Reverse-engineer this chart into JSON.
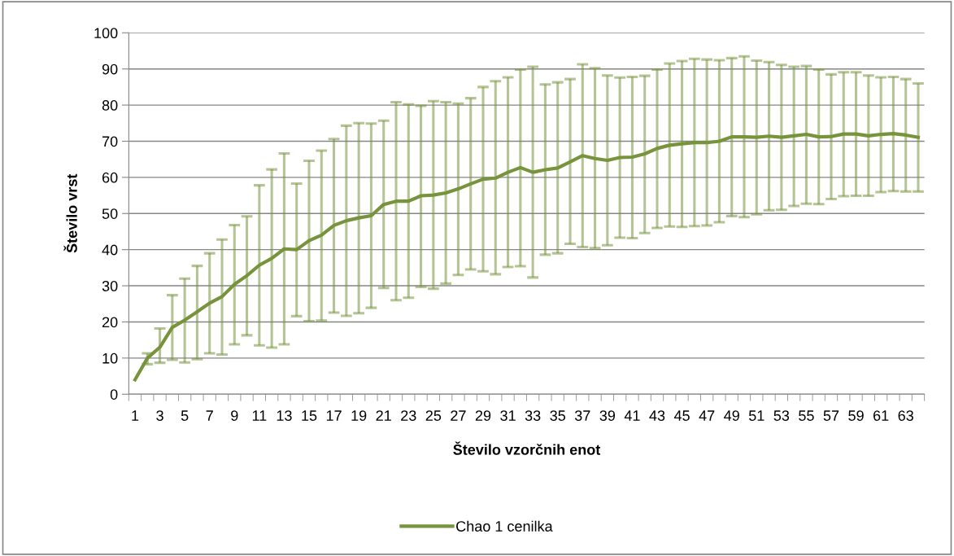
{
  "chart_data": {
    "type": "line",
    "xlabel": "Število vzorčnih enot",
    "ylabel": "Število vrst",
    "categories": [
      "1",
      null,
      "3",
      null,
      "5",
      null,
      "7",
      null,
      "9",
      null,
      "11",
      null,
      "13",
      null,
      "15",
      null,
      "17",
      null,
      "19",
      null,
      "21",
      null,
      "23",
      null,
      "25",
      null,
      "27",
      null,
      "29",
      null,
      "31",
      null,
      "33",
      null,
      "35",
      null,
      "37",
      null,
      "39",
      null,
      "41",
      null,
      "43",
      null,
      "45",
      null,
      "47",
      null,
      "49",
      null,
      "51",
      null,
      "53",
      null,
      "55",
      null,
      "57",
      null,
      "59",
      null,
      "61",
      null,
      "63",
      null
    ],
    "series": [
      {
        "name": "Chao 1 cenilka",
        "color": "#77933c",
        "values": [
          4,
          10,
          13,
          18.5,
          20.5,
          22.8,
          25.2,
          27,
          30.4,
          32.8,
          35.7,
          37.6,
          40.2,
          40,
          42.5,
          44,
          46.7,
          48,
          48.8,
          49.4,
          52.5,
          53.4,
          53.4,
          54.9,
          55.1,
          55.7,
          56.8,
          58.2,
          59.5,
          59.8,
          61.4,
          62.7,
          61.4,
          62.1,
          62.6,
          64.3,
          66,
          65.2,
          64.7,
          65.5,
          65.6,
          66.5,
          68,
          68.9,
          69.3,
          69.6,
          69.6,
          70,
          71.2,
          71.2,
          71.1,
          71.4,
          71.1,
          71.5,
          71.9,
          71.2,
          71.3,
          72,
          72,
          71.5,
          71.9,
          72.1,
          71.7,
          71.1
        ],
        "errors": [
          null,
          [
            8.3,
            11.3
          ],
          [
            8.7,
            18.2
          ],
          [
            9.5,
            27.4
          ],
          [
            8.8,
            32
          ],
          [
            9.7,
            35.5
          ],
          [
            11.3,
            39
          ],
          [
            11,
            42.8
          ],
          [
            13.8,
            46.8
          ],
          [
            16.3,
            49.2
          ],
          [
            13.5,
            57.8
          ],
          [
            12.9,
            62.2
          ],
          [
            13.8,
            66.6
          ],
          [
            21.6,
            58.3
          ],
          [
            20.2,
            64.6
          ],
          [
            20.4,
            67.4
          ],
          [
            22.6,
            70.6
          ],
          [
            21.7,
            74.3
          ],
          [
            22.4,
            75
          ],
          [
            23.9,
            74.9
          ],
          [
            29.4,
            75.7
          ],
          [
            26,
            80.8
          ],
          [
            26.7,
            80.2
          ],
          [
            29.7,
            79.8
          ],
          [
            29.2,
            81.1
          ],
          [
            30.6,
            80.8
          ],
          [
            33,
            80.4
          ],
          [
            34.5,
            81.9
          ],
          [
            34,
            85
          ],
          [
            33.2,
            86.6
          ],
          [
            35.2,
            87.7
          ],
          [
            35.4,
            89.8
          ],
          [
            32.3,
            90.6
          ],
          [
            38.6,
            85.7
          ],
          [
            39,
            86.3
          ],
          [
            41.6,
            87.2
          ],
          [
            40.7,
            91.3
          ],
          [
            40.4,
            90.2
          ],
          [
            41.2,
            88.2
          ],
          [
            43.3,
            87.6
          ],
          [
            43.2,
            87.8
          ],
          [
            44.6,
            88.1
          ],
          [
            46,
            89.8
          ],
          [
            46.4,
            91.5
          ],
          [
            46.3,
            92.2
          ],
          [
            46.5,
            92.8
          ],
          [
            46.7,
            92.6
          ],
          [
            47.6,
            92.4
          ],
          [
            49.3,
            93
          ],
          [
            49,
            93.5
          ],
          [
            49.8,
            92.3
          ],
          [
            50.9,
            91.9
          ],
          [
            51,
            91.1
          ],
          [
            52.1,
            90.6
          ],
          [
            52.7,
            90.8
          ],
          [
            52.6,
            89.8
          ],
          [
            54,
            88.5
          ],
          [
            54.8,
            89.1
          ],
          [
            54.9,
            89.1
          ],
          [
            54.9,
            88.2
          ],
          [
            55.9,
            87.7
          ],
          [
            56.2,
            87.8
          ],
          [
            56.1,
            87.2
          ],
          [
            56.1,
            86
          ]
        ]
      }
    ],
    "ylim": [
      0,
      100
    ],
    "yticks": [
      0,
      10,
      20,
      30,
      40,
      50,
      60,
      70,
      80,
      90,
      100
    ],
    "grid": "y",
    "legend": "bottom",
    "marker": "none",
    "line_style": "solid"
  }
}
